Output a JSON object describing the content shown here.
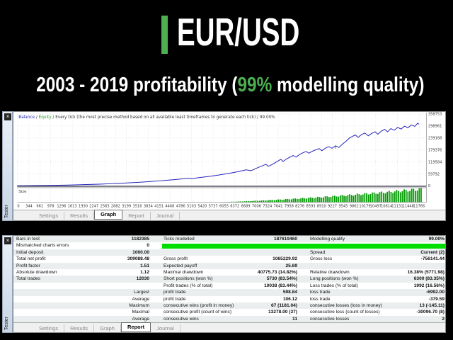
{
  "header": {
    "title": "EUR/USD",
    "subtitle": {
      "pre": "2003 - 2019 profitability (",
      "highlight": "99%",
      "post": " modelling quality)"
    }
  },
  "colors": {
    "accent_green": "#4caf50",
    "balance_blue": "#2323bb",
    "equity_green": "#2e9b2e",
    "histogram_green": "#009a00",
    "table_green": "#00dd00",
    "grid_gray": "#d9d9d9",
    "row_alt": "#ebeeef"
  },
  "graph_panel": {
    "close": "×",
    "strip_label": "Tester",
    "tabs": [
      "Settings",
      "Results",
      "Graph",
      "Report",
      "Journal"
    ],
    "active_tab": "Graph",
    "size_label": "Size"
  },
  "report_panel": {
    "close": "×",
    "strip_label": "Tester",
    "tabs": [
      "Settings",
      "Results",
      "Graph",
      "Report",
      "Journal"
    ],
    "active_tab": "Report",
    "green_bar_row": 1,
    "rows": [
      [
        "Bars in test",
        "1182385",
        "Ticks modelled",
        "187619460",
        "Modelling quality",
        "99.00%"
      ],
      [
        "Mismatched charts errors",
        "0",
        "",
        "",
        "",
        ""
      ],
      [
        "Initial deposit",
        "1000.00",
        "",
        "",
        "Spread",
        "Current (2)"
      ],
      [
        "Total net profit",
        "309088.48",
        "Gross profit",
        "1065229.92",
        "Gross loss",
        "-756141.44"
      ],
      [
        "Profit factor",
        "1.51",
        "Expected payoff",
        "25.69",
        "",
        ""
      ],
      [
        "Absolute drawdown",
        "1.12",
        "Maximal drawdown",
        "40775.73 (14.82%)",
        "Relative drawdown",
        "16.38% (5771.98)"
      ],
      [
        "Total trades",
        "12030",
        "Short positions (won %)",
        "5730 (83.54%)",
        "Long positions (won %)",
        "6300 (83.35%)"
      ],
      [
        "",
        "",
        "Profit trades (% of total)",
        "10038 (83.44%)",
        "Loss trades (% of total)",
        "1992 (16.56%)"
      ],
      [
        "",
        "Largest",
        "profit trade",
        "598.84",
        "loss trade",
        "-6992.00"
      ],
      [
        "",
        "Average",
        "profit trade",
        "106.12",
        "loss trade",
        "-379.59"
      ],
      [
        "",
        "Maximum",
        "consecutive wins (profit in money)",
        "67 (1181.04)",
        "consecutive losses (loss in money)",
        "13 (-145.11)"
      ],
      [
        "",
        "Maximal",
        "consecutive profit (count of wins)",
        "13278.00 (37)",
        "consecutive loss (count of losses)",
        "-30096.70 (8)"
      ],
      [
        "",
        "Average",
        "consecutive wins",
        "11",
        "consecutive losses",
        "2"
      ]
    ]
  },
  "chart_data": {
    "type": "line",
    "title": "Balance / Equity / Every tick (the most precise method based on all available least timeframes to generate each tick) / 99.00%",
    "legend": {
      "balance": "Balance",
      "separator": " / ",
      "equity": "Equity",
      "rest": "Every tick (the most precise method based on all available least timeframes to generate each tick) / 99.00%"
    },
    "xlabel": "",
    "ylabel": "",
    "xlim": [
      0,
      11940
    ],
    "ylim": [
      0,
      358753
    ],
    "x_ticks": [
      0,
      344,
      661,
      978,
      1296,
      1613,
      1930,
      2247,
      2565,
      2882,
      3199,
      3516,
      3834,
      4151,
      4468,
      4786,
      5103,
      5420,
      5737,
      6055,
      6372,
      6689,
      7006,
      7324,
      7641,
      7958,
      8276,
      8593,
      8910,
      9227,
      9545,
      9862,
      10179,
      10497,
      10814,
      11131,
      11448,
      11766
    ],
    "y_ticks": [
      358753,
      298961,
      239168,
      179376,
      119584,
      59792,
      0
    ],
    "grid": true,
    "legend_position": "top-left",
    "series": [
      {
        "name": "Balance",
        "points": [
          [
            0,
            1000
          ],
          [
            300,
            1500
          ],
          [
            600,
            2100
          ],
          [
            900,
            2800
          ],
          [
            1200,
            3600
          ],
          [
            1500,
            4600
          ],
          [
            1800,
            5800
          ],
          [
            2100,
            7200
          ],
          [
            2400,
            8800
          ],
          [
            2700,
            10700
          ],
          [
            3000,
            13000
          ],
          [
            3300,
            15600
          ],
          [
            3600,
            18600
          ],
          [
            3900,
            22000
          ],
          [
            4200,
            25800
          ],
          [
            4400,
            28500
          ],
          [
            4600,
            31500
          ],
          [
            4800,
            34800
          ],
          [
            5000,
            38400
          ],
          [
            5150,
            36500
          ],
          [
            5300,
            41000
          ],
          [
            5500,
            45000
          ],
          [
            5700,
            49500
          ],
          [
            5900,
            54500
          ],
          [
            6100,
            60000
          ],
          [
            6300,
            66000
          ],
          [
            6500,
            72500
          ],
          [
            6700,
            80000
          ],
          [
            6850,
            76000
          ],
          [
            7000,
            88000
          ],
          [
            7100,
            95000
          ],
          [
            7200,
            102000
          ],
          [
            7280,
            108000
          ],
          [
            7350,
            98000
          ],
          [
            7450,
            106000
          ],
          [
            7550,
            116000
          ],
          [
            7650,
            126000
          ],
          [
            7720,
            133000
          ],
          [
            7780,
            122000
          ],
          [
            7880,
            134000
          ],
          [
            7980,
            143000
          ],
          [
            8080,
            152000
          ],
          [
            8160,
            144000
          ],
          [
            8260,
            156000
          ],
          [
            8360,
            165000
          ],
          [
            8460,
            172000
          ],
          [
            8540,
            163000
          ],
          [
            8640,
            173000
          ],
          [
            8740,
            180000
          ],
          [
            8840,
            186000
          ],
          [
            8920,
            176000
          ],
          [
            9020,
            188000
          ],
          [
            9120,
            196000
          ],
          [
            9220,
            188000
          ],
          [
            9320,
            200000
          ],
          [
            9420,
            192000
          ],
          [
            9520,
            208000
          ],
          [
            9620,
            222000
          ],
          [
            9720,
            238000
          ],
          [
            9820,
            248000
          ],
          [
            9900,
            254000
          ],
          [
            9980,
            242000
          ],
          [
            10080,
            256000
          ],
          [
            10180,
            264000
          ],
          [
            10280,
            250000
          ],
          [
            10380,
            262000
          ],
          [
            10480,
            270000
          ],
          [
            10560,
            258000
          ],
          [
            10660,
            273000
          ],
          [
            10760,
            282000
          ],
          [
            10840,
            270000
          ],
          [
            10940,
            286000
          ],
          [
            11040,
            278000
          ],
          [
            11140,
            292000
          ],
          [
            11240,
            284000
          ],
          [
            11340,
            298000
          ],
          [
            11440,
            290000
          ],
          [
            11540,
            304000
          ],
          [
            11640,
            297000
          ],
          [
            11720,
            312000
          ],
          [
            11766,
            308000
          ]
        ]
      }
    ],
    "equity_marker": {
      "x": 9320,
      "y_from": 186000,
      "y_to": 204000
    },
    "size_histogram": {
      "label": "Size",
      "start_x": 5500,
      "end_x": 11850,
      "step": 55,
      "exponent": 1.5,
      "max_height_frac": 0.95
    }
  }
}
